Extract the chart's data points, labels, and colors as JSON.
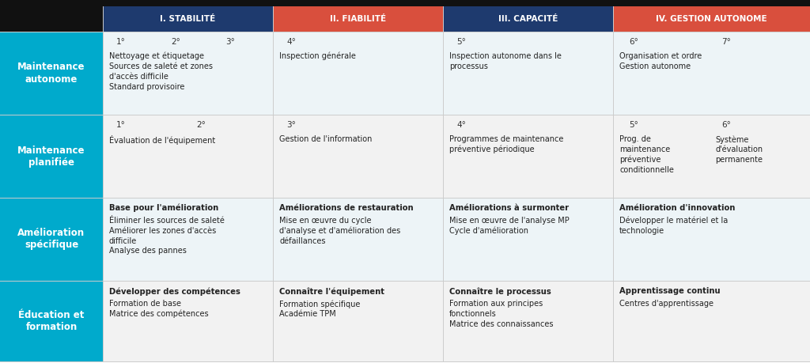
{
  "col_headers": [
    "I. STABILITÉ",
    "II. FIABILITÉ",
    "III. CAPACITÉ",
    "IV. GESTION AUTONOME"
  ],
  "col_header_colors": [
    "#1e3a6e",
    "#d94f3d",
    "#1e3a6e",
    "#d94f3d"
  ],
  "col_header_text_color": "#ffffff",
  "row_header_color": "#00aacc",
  "row_header_text_color": "#ffffff",
  "row_colors": [
    "#edf4f7",
    "#f2f2f2",
    "#edf4f7",
    "#f2f2f2"
  ],
  "fig_bg": "#ffffff",
  "top_bar_color": "#111111",
  "step_rows": [
    [
      "1°",
      "2°",
      "3°",
      "4°",
      "",
      "5°",
      "",
      "6°",
      "",
      "7°"
    ],
    [
      "1°",
      "",
      "2°",
      "",
      "3°",
      "",
      "4°",
      "",
      "5°",
      "",
      "6°"
    ],
    [
      "",
      "",
      "",
      ""
    ],
    [
      "",
      "",
      "",
      ""
    ]
  ],
  "step_positions_row0": [
    [
      0,
      "1°"
    ],
    [
      1,
      "2°"
    ],
    [
      2,
      "3°"
    ],
    [
      3,
      "4°"
    ],
    [
      4,
      "5°"
    ],
    [
      5,
      "6°"
    ],
    [
      6,
      "7°"
    ]
  ],
  "row_headers": [
    "Maintenance\nautonome",
    "Maintenance\nplanifiée",
    "Amélioration\nspécifique",
    "Éducation et\nformation"
  ],
  "subtitle_rows": [
    [
      "",
      "",
      "",
      ""
    ],
    [
      "",
      "",
      "",
      ""
    ],
    [
      "Base pour l'amélioration",
      "Améliorations de restauration",
      "Améliorations à surmonter",
      "Amélioration d'innovation"
    ],
    [
      "Développer des compétences",
      "Connaître l'équipement",
      "Connaître le processus",
      "Apprentissage continu"
    ]
  ],
  "content_rows": [
    [
      "Nettoyage et étiquetage\nSources de saleté et zones\nd'accès difficile\nStandard provisoire",
      "Inspection générale",
      "Inspection autonome dans le\nprocessus",
      "Organisation et ordre\nGestion autonome"
    ],
    [
      "Évaluation de l'équipement",
      "Gestion de l'information",
      "Programmes de maintenance\npréventive périodique",
      ""
    ],
    [
      "Éliminer les sources de saleté\nAméliorer les zones d'accès\ndifficile\nAnalyse des pannes",
      "Mise en œuvre du cycle\nd'analyse et d'amélioration des\ndéfaillances",
      "Mise en œuvre de l'analyse MP\nCycle d'amélioration",
      "Développer le matériel et la\ntechnologie"
    ],
    [
      "Formation de base\nMatrice des compétences",
      "Formation spécifique\nAcadémie TPM",
      "Formation aux principes\nfonctionnels\nMatrice des connaissances",
      "Centres d'apprentissage"
    ]
  ],
  "planifiee_col4_left": "Prog. de\nmaintenance\npréventive\nconditionnelle",
  "planifiee_col4_right": "Système\nd'évaluation\npermanente"
}
